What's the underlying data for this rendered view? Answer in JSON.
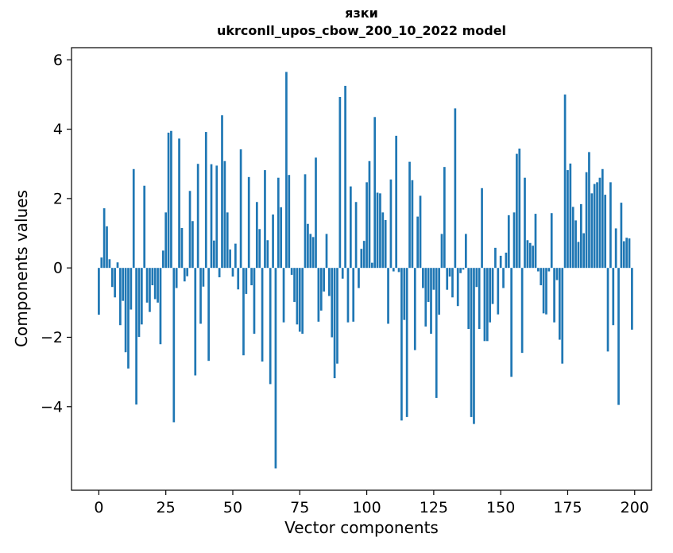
{
  "figure": {
    "title_line1": "язки",
    "title_line2": "ukrconll_upos_cbow_200_10_2022 model",
    "xlabel": "Vector components",
    "ylabel": "Components values"
  },
  "chart_data": {
    "type": "bar",
    "title": "язки — ukrconll_upos_cbow_200_10_2022 model",
    "xlabel": "Vector components",
    "ylabel": "Components values",
    "bar_color": "#1f77b4",
    "background": "#ffffff",
    "grid": false,
    "legend_position": "none",
    "x_start": 0,
    "x_step": 1,
    "n_bars": 200,
    "xticks": [
      0,
      25,
      50,
      75,
      100,
      125,
      150,
      175,
      200
    ],
    "yticks": [
      -4,
      -2,
      0,
      2,
      4,
      6
    ],
    "xlim": [
      -10.2,
      206.3
    ],
    "ylim": [
      -6.41,
      6.35
    ],
    "values": [
      -1.35,
      0.3,
      1.72,
      1.2,
      0.25,
      -0.55,
      -0.85,
      0.16,
      -1.65,
      -0.95,
      -2.43,
      -2.9,
      -1.2,
      2.85,
      -3.94,
      -1.99,
      -1.63,
      2.37,
      -1.0,
      -1.27,
      -0.5,
      -0.9,
      -1.0,
      -2.2,
      0.5,
      1.6,
      3.9,
      3.95,
      -4.45,
      -0.58,
      3.73,
      1.15,
      -0.39,
      -0.24,
      2.22,
      1.35,
      -3.1,
      3.0,
      -1.61,
      -0.54,
      3.92,
      -2.68,
      2.99,
      0.79,
      2.95,
      -0.27,
      4.4,
      3.08,
      1.6,
      0.53,
      -0.25,
      0.7,
      -0.62,
      3.42,
      -2.52,
      -0.75,
      2.62,
      -0.5,
      -1.9,
      1.9,
      1.12,
      -2.7,
      2.82,
      0.8,
      -3.35,
      1.54,
      -5.78,
      2.6,
      1.75,
      -1.57,
      5.65,
      2.68,
      -0.2,
      -0.98,
      -1.63,
      -1.84,
      -1.9,
      2.7,
      1.27,
      0.98,
      0.89,
      3.18,
      -1.55,
      -1.23,
      -0.68,
      0.98,
      -0.81,
      -2.0,
      -3.18,
      -2.76,
      4.93,
      -0.31,
      5.25,
      -1.57,
      2.35,
      -1.55,
      1.9,
      -0.58,
      0.55,
      0.78,
      2.47,
      3.08,
      0.15,
      4.35,
      2.17,
      2.15,
      1.6,
      1.38,
      -1.61,
      2.55,
      -0.1,
      3.81,
      -0.12,
      -4.4,
      -1.5,
      -4.3,
      3.06,
      2.53,
      -2.37,
      1.48,
      2.08,
      -0.58,
      -1.69,
      -0.98,
      -1.9,
      -0.63,
      -3.75,
      -1.35,
      0.98,
      2.91,
      -0.63,
      -0.25,
      -0.85,
      4.6,
      -1.1,
      -0.15,
      -0.05,
      0.98,
      -1.76,
      -4.3,
      -4.5,
      -0.55,
      -1.76,
      2.3,
      -2.11,
      -2.11,
      -1.57,
      -1.04,
      0.58,
      -1.34,
      0.35,
      -0.58,
      0.44,
      1.52,
      -3.14,
      1.6,
      3.29,
      3.44,
      -2.45,
      2.6,
      0.8,
      0.72,
      0.64,
      1.56,
      -0.1,
      -0.5,
      -1.31,
      -1.34,
      -0.1,
      1.58,
      -1.57,
      -0.35,
      -2.07,
      -2.76,
      5.0,
      2.82,
      3.01,
      1.76,
      1.37,
      0.75,
      1.84,
      1.0,
      2.76,
      3.34,
      2.15,
      2.42,
      2.47,
      2.6,
      2.85,
      2.11,
      -2.41,
      2.47,
      -1.65,
      1.14,
      -3.95,
      1.88,
      0.77,
      0.87,
      0.85,
      -1.78
    ]
  }
}
